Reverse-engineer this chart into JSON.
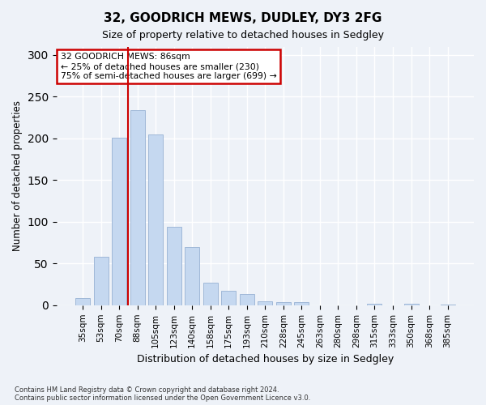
{
  "title1": "32, GOODRICH MEWS, DUDLEY, DY3 2FG",
  "title2": "Size of property relative to detached houses in Sedgley",
  "xlabel": "Distribution of detached houses by size in Sedgley",
  "ylabel": "Number of detached properties",
  "categories": [
    "35sqm",
    "53sqm",
    "70sqm",
    "88sqm",
    "105sqm",
    "123sqm",
    "140sqm",
    "158sqm",
    "175sqm",
    "193sqm",
    "210sqm",
    "228sqm",
    "245sqm",
    "263sqm",
    "280sqm",
    "298sqm",
    "315sqm",
    "333sqm",
    "350sqm",
    "368sqm",
    "385sqm"
  ],
  "values": [
    9,
    58,
    201,
    234,
    205,
    94,
    70,
    27,
    17,
    13,
    5,
    4,
    4,
    0,
    0,
    0,
    2,
    0,
    2,
    0,
    1
  ],
  "bar_color": "#c5d8f0",
  "bar_edgecolor": "#a0b8d8",
  "vline_color": "#cc0000",
  "annotation_text": "32 GOODRICH MEWS: 86sqm\n← 25% of detached houses are smaller (230)\n75% of semi-detached houses are larger (699) →",
  "annotation_box_color": "#cc0000",
  "ylim": [
    0,
    310
  ],
  "yticks": [
    0,
    50,
    100,
    150,
    200,
    250,
    300
  ],
  "footer1": "Contains HM Land Registry data © Crown copyright and database right 2024.",
  "footer2": "Contains public sector information licensed under the Open Government Licence v3.0.",
  "background_color": "#eef2f8",
  "grid_color": "#ffffff"
}
